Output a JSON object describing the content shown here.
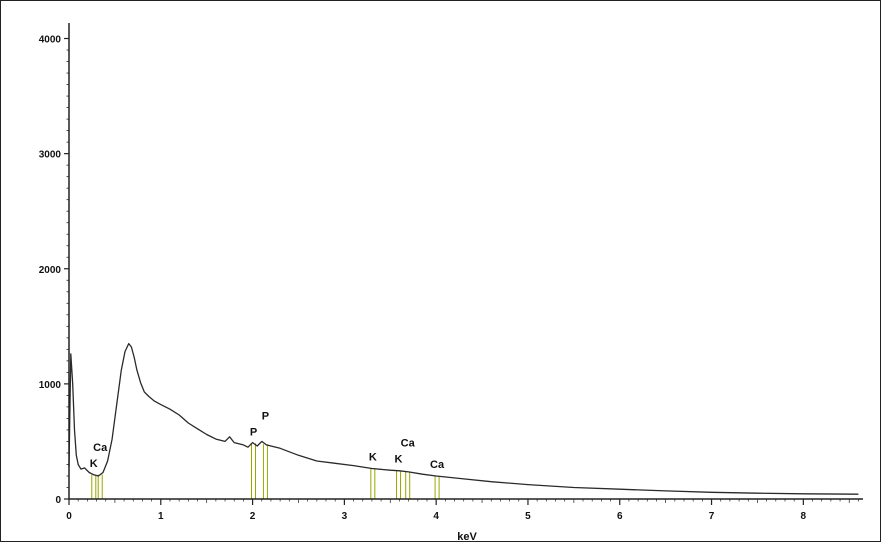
{
  "chart_data": {
    "type": "line",
    "title": "",
    "xlabel": "keV",
    "ylabel": "",
    "xlim": [
      0,
      8.65
    ],
    "ylim": [
      0,
      4100
    ],
    "x_ticks": [
      0,
      1,
      2,
      3,
      4,
      5,
      6,
      7,
      8
    ],
    "y_ticks": [
      0,
      1000,
      2000,
      3000,
      4000
    ],
    "grid": false,
    "legend": "none",
    "colors": {
      "spectrum": "#2a2a2a",
      "markers": "#9aa600",
      "axis": "#222222"
    },
    "series": [
      {
        "x": [
          0.0,
          0.02,
          0.04,
          0.06,
          0.08,
          0.1,
          0.13,
          0.17,
          0.22,
          0.27,
          0.32,
          0.37,
          0.42,
          0.47,
          0.52,
          0.57,
          0.61,
          0.65,
          0.68,
          0.71,
          0.74,
          0.78,
          0.82,
          0.87,
          0.93,
          1.0,
          1.1,
          1.2,
          1.3,
          1.4,
          1.5,
          1.6,
          1.7,
          1.75,
          1.8,
          1.9,
          1.95,
          2.0,
          2.05,
          2.1,
          2.15,
          2.2,
          2.3,
          2.4,
          2.5,
          2.7,
          2.9,
          3.1,
          3.3,
          3.5,
          3.6,
          3.7,
          3.85,
          4.0,
          4.3,
          4.6,
          5.0,
          5.5,
          6.0,
          6.5,
          7.0,
          7.5,
          8.0,
          8.6
        ],
        "y": [
          280,
          1260,
          1000,
          600,
          380,
          300,
          260,
          270,
          230,
          210,
          200,
          230,
          330,
          520,
          820,
          1120,
          1280,
          1350,
          1320,
          1230,
          1120,
          1010,
          930,
          890,
          850,
          820,
          780,
          730,
          660,
          610,
          560,
          520,
          500,
          540,
          490,
          470,
          450,
          490,
          460,
          500,
          470,
          460,
          440,
          410,
          380,
          330,
          310,
          290,
          265,
          250,
          245,
          235,
          215,
          200,
          175,
          150,
          125,
          100,
          85,
          70,
          58,
          50,
          45,
          42
        ]
      }
    ],
    "element_lines": [
      {
        "label": "K",
        "x": 0.27
      },
      {
        "label": "Ca",
        "x": 0.34
      },
      {
        "label": "P",
        "x": 2.01
      },
      {
        "label": "P",
        "x": 2.14
      },
      {
        "label": "K",
        "x": 3.31
      },
      {
        "label": "K",
        "x": 3.59
      },
      {
        "label": "Ca",
        "x": 3.69
      },
      {
        "label": "Ca",
        "x": 4.01
      }
    ]
  }
}
